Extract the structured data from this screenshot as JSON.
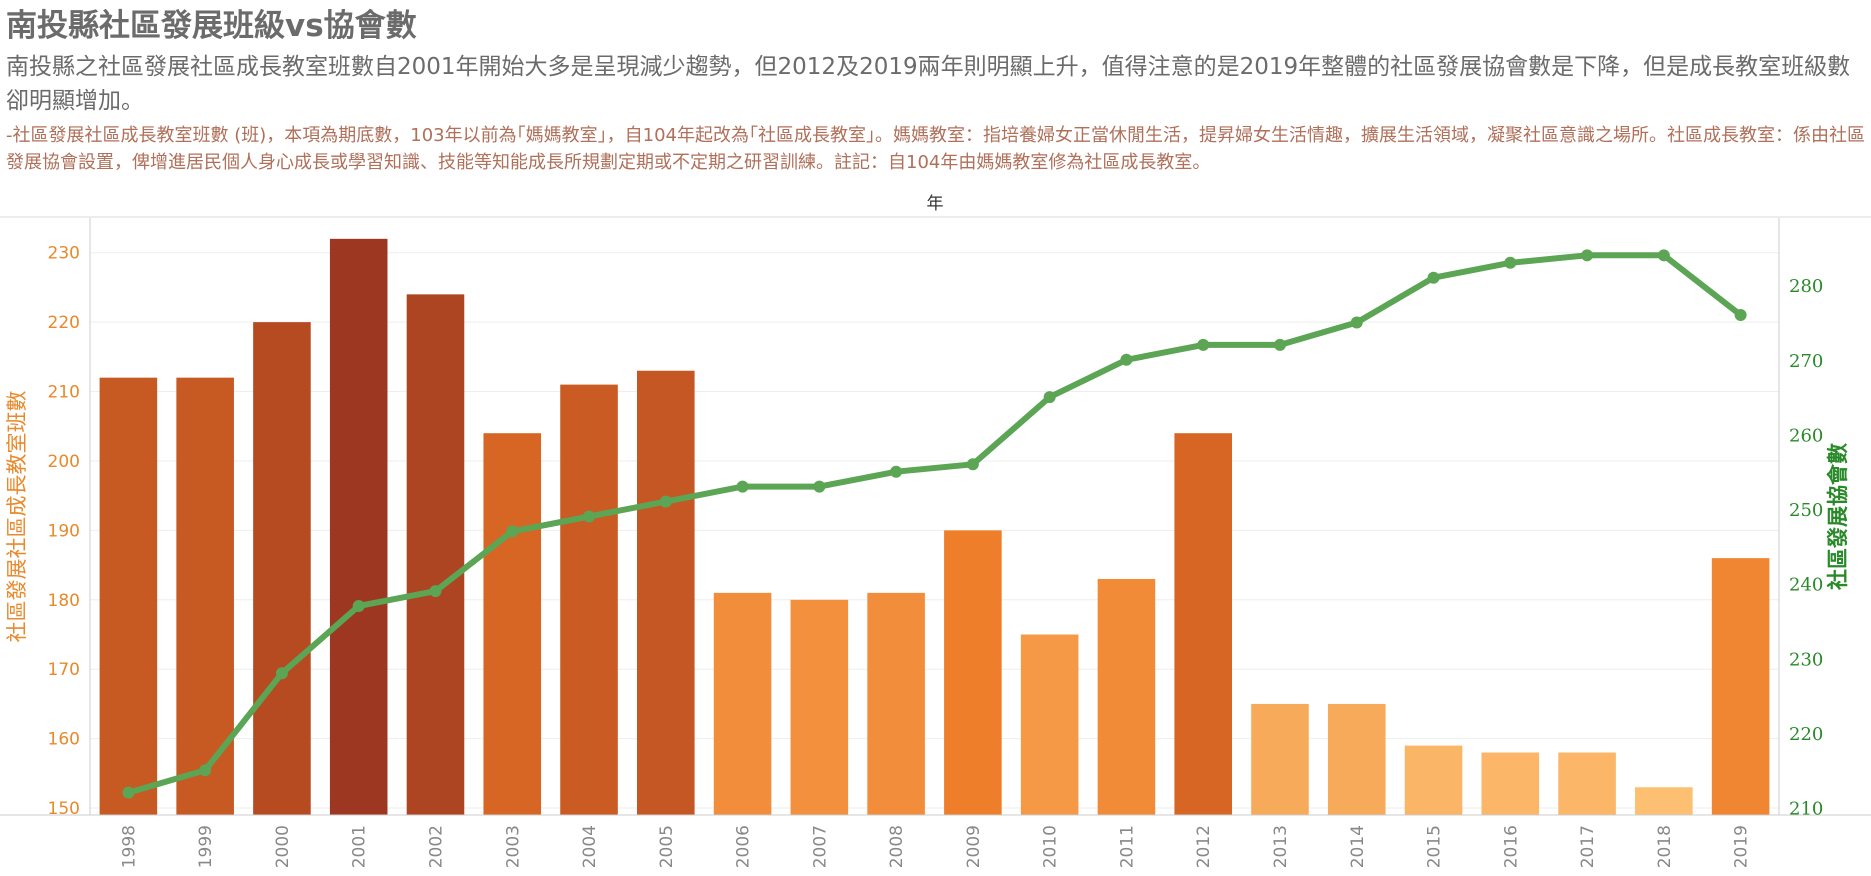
{
  "header": {
    "title": "南投縣社區發展班級vs協會數",
    "subtitle": "南投縣之社區發展社區成長教室班數自2001年開始大多是呈現減少趨勢，但2012及2019兩年則明顯上升，值得注意的是2019年整體的社區發展協會數是下降，但是成長教室班級數卻明顯增加。",
    "note": "-社區發展社區成長教室班數 (班)，本項為期底數，103年以前為｢媽媽教室｣，自104年起改為｢社區成長教室｣。媽媽教室：指培養婦女正當休閒生活，提昇婦女生活情趣，擴展生活領域，凝聚社區意識之場所。社區成長教室：係由社區發展協會設置，俾增進居民個人身心成長或學習知識、技能等知能成長所規劃定期或不定期之研習訓練。註記：自104年由媽媽教室修為社區成長教室。"
  },
  "chart_data": {
    "type": "bar+line",
    "x_title": "年",
    "categories": [
      "1998",
      "1999",
      "2000",
      "2001",
      "2002",
      "2003",
      "2004",
      "2005",
      "2006",
      "2007",
      "2008",
      "2009",
      "2010",
      "2011",
      "2012",
      "2013",
      "2014",
      "2015",
      "2016",
      "2017",
      "2018",
      "2019"
    ],
    "series": [
      {
        "name": "社區發展社區成長教室班數",
        "type": "bar",
        "axis": "left",
        "values": [
          212,
          212,
          220,
          232,
          224,
          204,
          211,
          213,
          181,
          180,
          181,
          190,
          175,
          183,
          204,
          165,
          165,
          159,
          158,
          158,
          153,
          186
        ]
      },
      {
        "name": "社區發展協會數",
        "type": "line",
        "axis": "right",
        "color": "#5ba555",
        "values": [
          212,
          215,
          228,
          237,
          239,
          247,
          249,
          251,
          253,
          253,
          255,
          256,
          265,
          270,
          272,
          272,
          275,
          281,
          283,
          284,
          284,
          276
        ]
      }
    ],
    "y_left": {
      "label": "社區發展社區成長教室班數",
      "min": 149,
      "max": 235,
      "ticks": [
        150,
        160,
        170,
        180,
        190,
        200,
        210,
        220,
        230
      ],
      "color": "#e8892b"
    },
    "y_right": {
      "label": "社區發展協會數",
      "min": 209,
      "max": 289,
      "ticks": [
        210,
        220,
        230,
        240,
        250,
        260,
        270,
        280
      ],
      "color": "#2a8a2a"
    },
    "color_scale": {
      "low": "#fdbf72",
      "mid": "#ee7a25",
      "high": "#9e3721"
    }
  }
}
